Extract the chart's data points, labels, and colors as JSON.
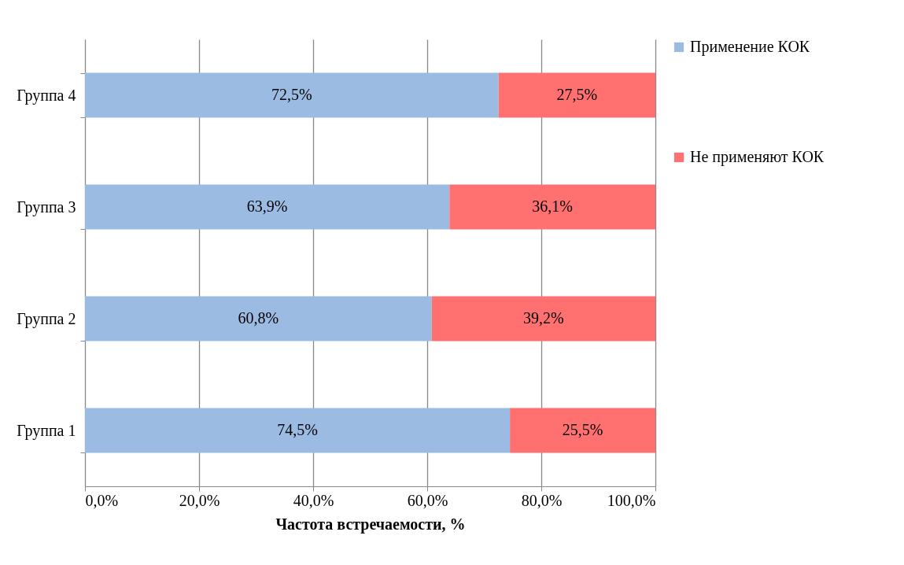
{
  "chart_data": {
    "type": "bar",
    "orientation": "horizontal",
    "stacked": true,
    "xlabel": "Частота встречаемости, %",
    "categories": [
      "Группа 4",
      "Группа 3",
      "Группа 2",
      "Группа 1"
    ],
    "series": [
      {
        "name": "Применение КОК",
        "color": "#9bbbe3",
        "values": [
          72.5,
          63.9,
          60.8,
          74.5
        ],
        "value_labels": [
          "72,5%",
          "63,9%",
          "60,8%",
          "74,5%"
        ]
      },
      {
        "name": "Не применяют КОК",
        "color": "#ff7171",
        "values": [
          27.5,
          36.1,
          39.2,
          25.5
        ],
        "value_labels": [
          "27,5%",
          "36,1%",
          "39,2%",
          "25,5%"
        ]
      }
    ],
    "xlim": [
      0,
      100
    ],
    "xticks": [
      {
        "value": 0,
        "label": "0,0%"
      },
      {
        "value": 20,
        "label": "20,0%"
      },
      {
        "value": 40,
        "label": "40,0%"
      },
      {
        "value": 60,
        "label": "60,0%"
      },
      {
        "value": 80,
        "label": "80,0%"
      },
      {
        "value": 100,
        "label": "100,0%"
      }
    ],
    "grid": "x",
    "legend": "right"
  }
}
